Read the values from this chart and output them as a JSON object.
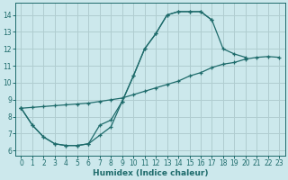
{
  "xlabel": "Humidex (Indice chaleur)",
  "bg_color": "#cce8ec",
  "grid_color": "#b0cdd0",
  "line_color": "#1e6b6b",
  "xlim": [
    -0.5,
    23.5
  ],
  "ylim": [
    5.7,
    14.7
  ],
  "xticks": [
    0,
    1,
    2,
    3,
    4,
    5,
    6,
    7,
    8,
    9,
    10,
    11,
    12,
    13,
    14,
    15,
    16,
    17,
    18,
    19,
    20,
    21,
    22,
    23
  ],
  "yticks": [
    6,
    7,
    8,
    9,
    10,
    11,
    12,
    13,
    14
  ],
  "line1_x": [
    0,
    1,
    2,
    3,
    4,
    5,
    6,
    7,
    8,
    9,
    10,
    11,
    12,
    13,
    14,
    15,
    16,
    17,
    18,
    19,
    20
  ],
  "line1_y": [
    8.5,
    7.5,
    6.8,
    6.4,
    6.3,
    6.3,
    6.4,
    7.5,
    7.8,
    8.9,
    10.4,
    12.0,
    12.9,
    14.0,
    14.2,
    14.2,
    14.2,
    13.7,
    12.0,
    11.7,
    11.5
  ],
  "line2_x": [
    0,
    1,
    2,
    3,
    4,
    5,
    6,
    7,
    8,
    9,
    10,
    11,
    12,
    13,
    14,
    15,
    16,
    17
  ],
  "line2_y": [
    8.5,
    7.5,
    6.8,
    6.4,
    6.3,
    6.3,
    6.4,
    6.9,
    7.4,
    8.9,
    10.4,
    12.0,
    12.9,
    14.0,
    14.2,
    14.2,
    14.2,
    13.7
  ],
  "line3_x": [
    0,
    1,
    2,
    3,
    4,
    5,
    6,
    7,
    8,
    9,
    10,
    11,
    12,
    13,
    14,
    15,
    16,
    17,
    18,
    19,
    20,
    21,
    22,
    23
  ],
  "line3_y": [
    8.5,
    8.55,
    8.6,
    8.65,
    8.7,
    8.75,
    8.8,
    8.9,
    9.0,
    9.1,
    9.3,
    9.5,
    9.7,
    9.9,
    10.1,
    10.4,
    10.6,
    10.9,
    11.1,
    11.2,
    11.4,
    11.5,
    11.55,
    11.5
  ]
}
